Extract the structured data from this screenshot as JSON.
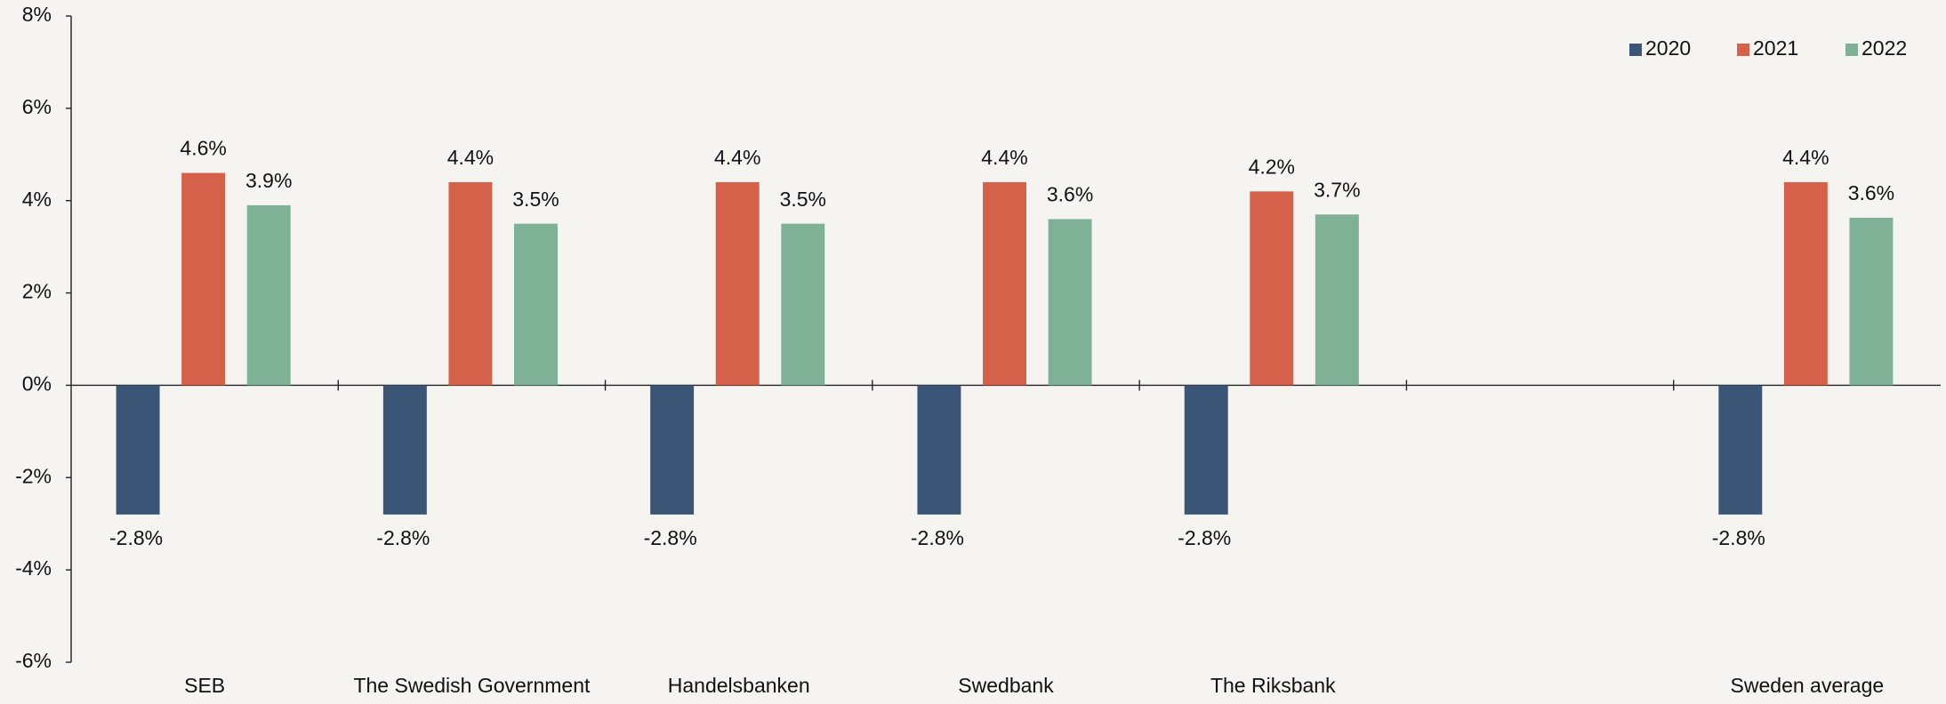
{
  "chart_data": {
    "type": "bar",
    "categories": [
      "SEB",
      "The Swedish Government",
      "Handelsbanken",
      "Swedbank",
      "The Riksbank",
      null,
      "Sweden average"
    ],
    "series": [
      {
        "name": "2020",
        "color": "#3a5575",
        "values": [
          -2.8,
          -2.8,
          -2.8,
          -2.8,
          -2.8,
          null,
          -2.8
        ],
        "value_labels": [
          "-2.8%",
          "-2.8%",
          "-2.8%",
          "-2.8%",
          "-2.8%",
          null,
          "-2.8%"
        ]
      },
      {
        "name": "2021",
        "color": "#d5614a",
        "values": [
          4.6,
          4.4,
          4.4,
          4.4,
          4.2,
          null,
          4.4
        ],
        "value_labels": [
          "4.6%",
          "4.4%",
          "4.4%",
          "4.4%",
          "4.2%",
          null,
          "4.4%"
        ]
      },
      {
        "name": "2022",
        "color": "#7fb197",
        "values": [
          3.9,
          3.5,
          3.5,
          3.6,
          3.7,
          null,
          3.63
        ],
        "value_labels": [
          "3.9%",
          "3.5%",
          "3.5%",
          "3.6%",
          "3.7%",
          null,
          "3.6%"
        ]
      }
    ],
    "ylim": [
      -6,
      8
    ],
    "yticks": [
      {
        "value": -6,
        "label": "-6%"
      },
      {
        "value": -4,
        "label": "-4%"
      },
      {
        "value": -2,
        "label": "-2%"
      },
      {
        "value": 0,
        "label": "0%"
      },
      {
        "value": 2,
        "label": "2%"
      },
      {
        "value": 4,
        "label": "4%"
      },
      {
        "value": 6,
        "label": "6%"
      },
      {
        "value": 8,
        "label": "8%"
      }
    ],
    "grid": false,
    "legend": "top-right"
  }
}
